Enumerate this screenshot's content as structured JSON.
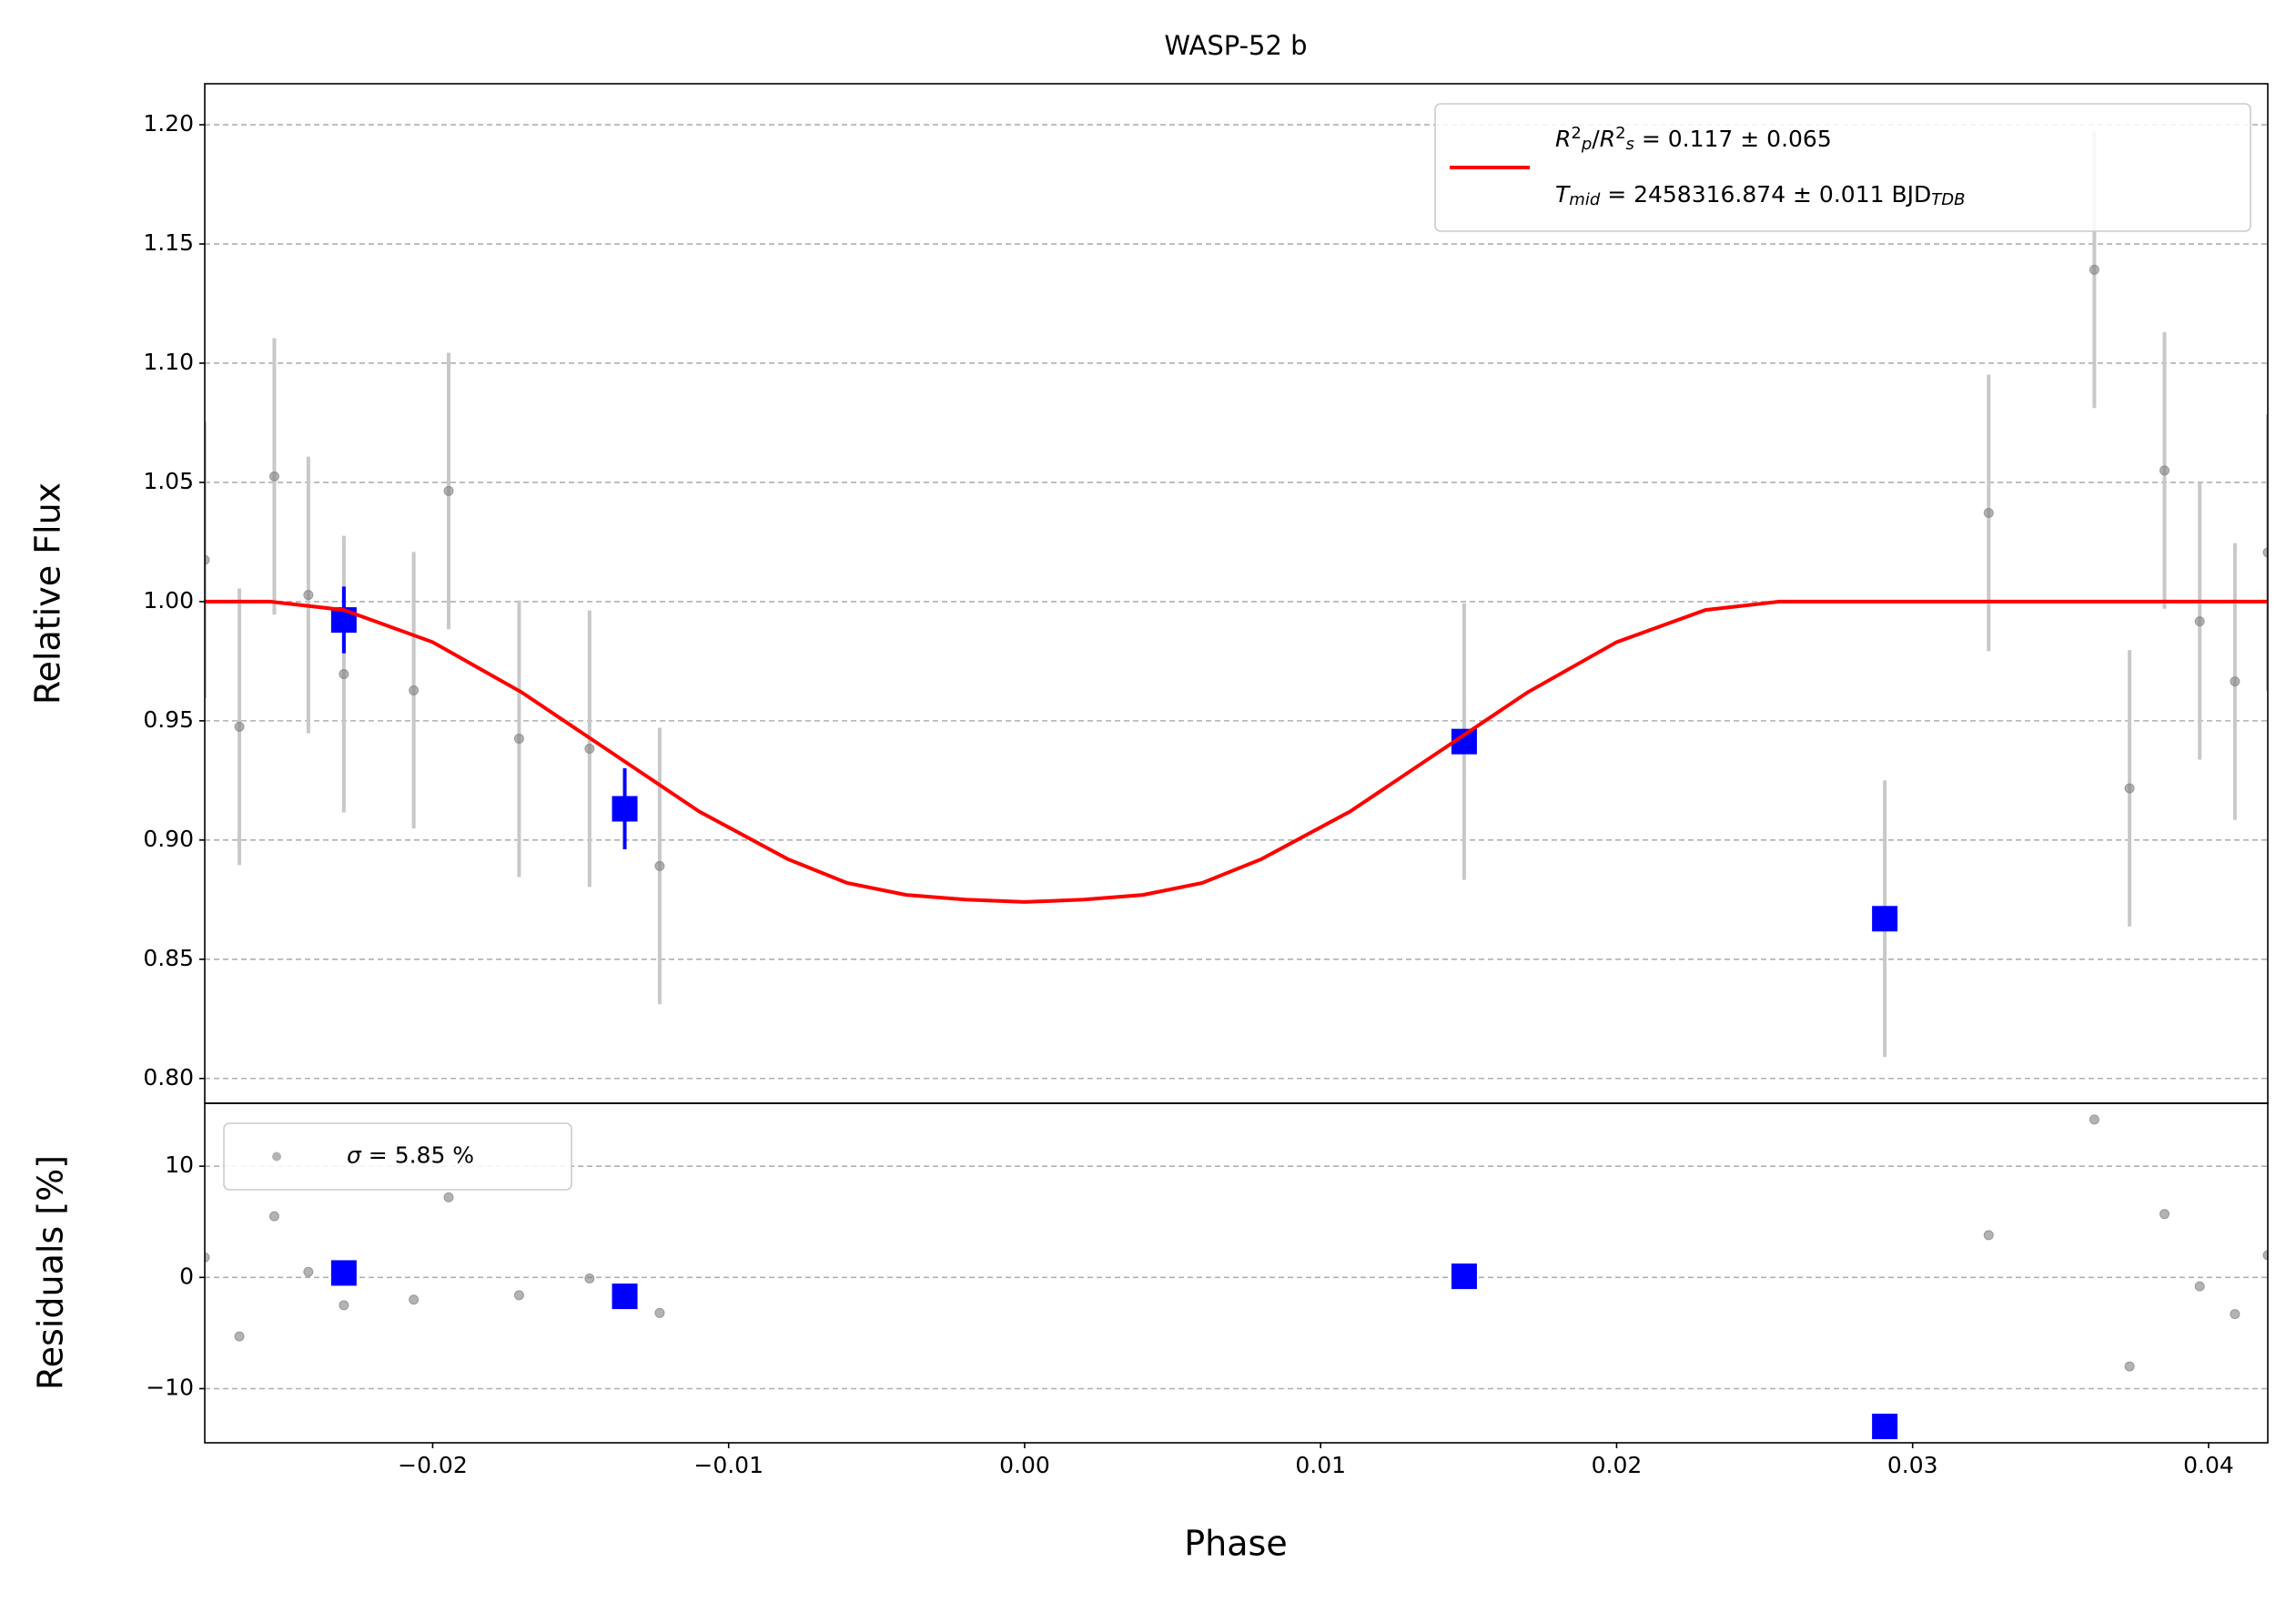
{
  "chart_data": [
    {
      "type": "scatter",
      "title": "WASP-52 b",
      "ylabel": "Relative Flux",
      "xlim": [
        -0.0277,
        0.042
      ],
      "ylim": [
        0.7896,
        1.2172
      ],
      "yticks": [
        {
          "value": 0.8,
          "label": "0.80"
        },
        0.85,
        {
          "value": 0.9,
          "label": "0.90"
        },
        0.95,
        {
          "value": 1.0,
          "label": "1.00"
        },
        1.05,
        {
          "value": 1.1,
          "label": "1.10"
        },
        1.15,
        {
          "value": 1.2,
          "label": "1.20"
        }
      ],
      "grid": true,
      "legend_loc": "upper right",
      "series": [
        {
          "kind": "points",
          "color": "#808080",
          "error_color": "#c8c8c8",
          "x": [
            -0.0277,
            -0.02653,
            -0.02535,
            -0.0242,
            -0.023,
            -0.02064,
            -0.01946,
            -0.01708,
            -0.0147,
            -0.01233,
            0.01485,
            0.02906,
            0.03257,
            0.03614,
            0.03733,
            0.03851,
            0.0397,
            0.04089,
            0.042
          ],
          "values": [
            1.0175,
            0.9475,
            1.0525,
            1.0028,
            0.9696,
            0.9628,
            1.0464,
            0.9425,
            0.9383,
            0.8891,
            0.9413,
            0.867,
            1.0372,
            1.1392,
            0.9217,
            1.055,
            0.9917,
            0.9665,
            1.0206
          ],
          "errors": [
            0.058,
            0.058,
            0.058,
            0.058,
            0.058,
            0.058,
            0.058,
            0.058,
            0.058,
            0.058,
            0.058,
            0.058,
            0.058,
            0.058,
            0.058,
            0.058,
            0.058,
            0.058,
            0.058
          ]
        },
        {
          "kind": "binned",
          "color": "#0000ff",
          "x": [
            -0.023,
            -0.01351,
            0.01485,
            0.02906
          ],
          "values": [
            0.9923,
            0.9131,
            0.9413,
            0.867
          ],
          "errors": [
            0.014,
            0.017,
            0.003,
            0.003
          ]
        },
        {
          "kind": "line",
          "color": "#ff0000",
          "x": [
            -0.0277,
            -0.0255,
            -0.023,
            -0.02,
            -0.017,
            -0.014,
            -0.011,
            -0.008,
            -0.006,
            -0.004,
            -0.002,
            0,
            0.002,
            0.004,
            0.006,
            0.008,
            0.011,
            0.014,
            0.017,
            0.02,
            0.023,
            0.0255,
            0.042
          ],
          "values": [
            1,
            1,
            0.9965,
            0.983,
            0.962,
            0.937,
            0.912,
            0.892,
            0.882,
            0.877,
            0.875,
            0.874,
            0.875,
            0.877,
            0.882,
            0.892,
            0.912,
            0.937,
            0.962,
            0.983,
            0.9965,
            1,
            1
          ],
          "legend": [
            [
              {
                "t": "R",
                "s": "i"
              },
              {
                "t": "2",
                "s": "sup"
              },
              {
                "t": "p",
                "s": "sub"
              },
              {
                "t": "/",
                "s": "n"
              },
              {
                "t": "R",
                "s": "i"
              },
              {
                "t": "2",
                "s": "sup"
              },
              {
                "t": "s",
                "s": "sub"
              },
              {
                "t": " = 0.117 ± 0.065",
                "s": "n"
              }
            ],
            [
              {
                "t": "T",
                "s": "i"
              },
              {
                "t": "mid",
                "s": "sub"
              },
              {
                "t": " = 2458316.874 ± 0.011 BJD",
                "s": "n"
              },
              {
                "t": "TDB",
                "s": "sub"
              }
            ]
          ]
        }
      ]
    },
    {
      "type": "scatter",
      "ylabel": "Residuals [%]",
      "xlabel": "Phase",
      "xlim": [
        -0.0277,
        0.042
      ],
      "ylim": [
        -14.87,
        15.66
      ],
      "xticks": [
        {
          "value": -0.02,
          "label": "−0.02"
        },
        {
          "value": -0.01,
          "label": "−0.01"
        },
        {
          "value": 0,
          "label": "0.00"
        },
        0.01,
        0.02,
        0.03,
        0.04
      ],
      "yticks": [
        {
          "value": -10,
          "label": "−10"
        },
        0,
        10
      ],
      "grid": true,
      "legend_loc": "upper left",
      "series": [
        {
          "kind": "points",
          "color": "#808080",
          "x": [
            -0.0277,
            -0.02653,
            -0.02535,
            -0.0242,
            -0.023,
            -0.02064,
            -0.01946,
            -0.01708,
            -0.0147,
            -0.01233,
            0.01485,
            0.02906,
            0.03257,
            0.03614,
            0.03733,
            0.03851,
            0.0397,
            0.04089,
            0.042
          ],
          "values": [
            1.8,
            -5.3,
            5.5,
            0.5,
            -2.5,
            -2.0,
            7.2,
            -1.6,
            -0.1,
            -3.2,
            0.1,
            -13.4,
            3.8,
            14.2,
            -8.0,
            5.7,
            -0.8,
            -3.3,
            2.0
          ],
          "legend": [
            [
              {
                "t": "σ",
                "s": "i"
              },
              {
                "t": " = 5.85 %",
                "s": "n"
              }
            ]
          ]
        },
        {
          "kind": "binned",
          "color": "#0000ff",
          "x": [
            -0.023,
            -0.01351,
            0.01485,
            0.02906
          ],
          "values": [
            0.4,
            -1.7,
            0.1,
            -13.4
          ]
        }
      ]
    }
  ]
}
